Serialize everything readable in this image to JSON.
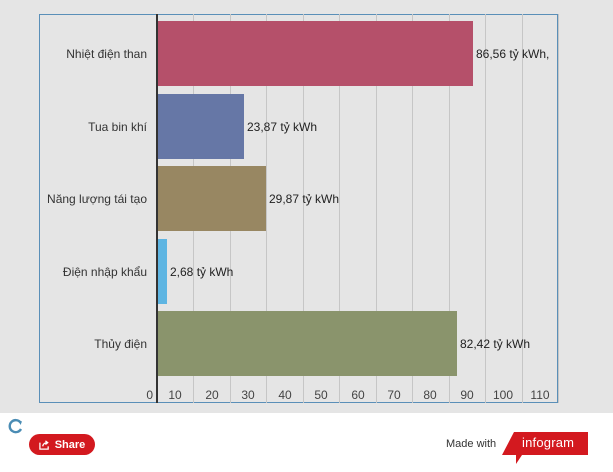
{
  "chart_data": {
    "type": "bar",
    "orientation": "horizontal",
    "title": "",
    "xlabel": "",
    "ylabel": "",
    "categories": [
      "Nhiệt điện than",
      "Tua bin khí",
      "Năng lượng tái tạo",
      "Điện nhập khẩu",
      "Thủy điện"
    ],
    "values": [
      86.56,
      23.87,
      29.87,
      2.68,
      82.42
    ],
    "value_labels": [
      "86,56 tỷ kWh,",
      "23,87 tỷ kWh",
      "29,87 tỷ kWh",
      "2,68 tỷ kWh",
      "82,42 tỷ kWh"
    ],
    "colors": [
      "#b5506a",
      "#6677a6",
      "#988762",
      "#5eb5e2",
      "#8a946c"
    ],
    "unit": "tỷ kWh",
    "xlim": [
      0,
      110
    ],
    "xticks": [
      "0",
      "10",
      "20",
      "30",
      "40",
      "50",
      "60",
      "70",
      "80",
      "90",
      "100",
      "110"
    ],
    "grid": true,
    "legend": null
  },
  "footer": {
    "share_label": "Share",
    "made_with": "Made with",
    "brand": "infogram",
    "brand_color": "#d3191f",
    "refresh_icon": "refresh-icon",
    "share_icon": "share-icon"
  }
}
